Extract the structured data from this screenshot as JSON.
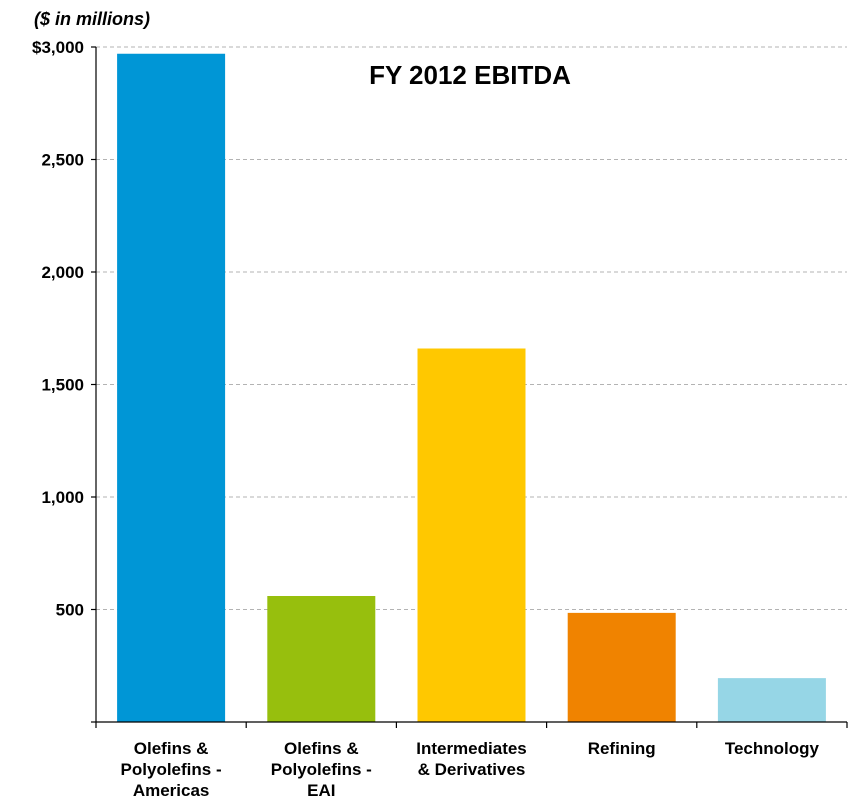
{
  "chart_data": {
    "type": "bar",
    "title": "FY 2012 EBITDA",
    "unit_label": "($ in millions)",
    "categories": [
      [
        "Olefins &",
        "Polyolefins -",
        "Americas"
      ],
      [
        "Olefins &",
        "Polyolefins -",
        "EAI"
      ],
      [
        "Intermediates",
        "& Derivatives"
      ],
      [
        "Refining"
      ],
      [
        "Technology"
      ]
    ],
    "values": [
      2970,
      560,
      1660,
      485,
      195
    ],
    "colors": [
      "#0096d6",
      "#97bf0d",
      "#ffc800",
      "#f08300",
      "#96d6e6"
    ],
    "ylim": [
      0,
      3000
    ],
    "yticks": [
      {
        "value": 500,
        "label": "500"
      },
      {
        "value": 1000,
        "label": "1,000"
      },
      {
        "value": 1500,
        "label": "1,500"
      },
      {
        "value": 2000,
        "label": "2,000"
      },
      {
        "value": 2500,
        "label": "2,500"
      },
      {
        "value": 3000,
        "label": "$3,000"
      }
    ],
    "grid": true,
    "xlabel": "",
    "ylabel": ""
  }
}
